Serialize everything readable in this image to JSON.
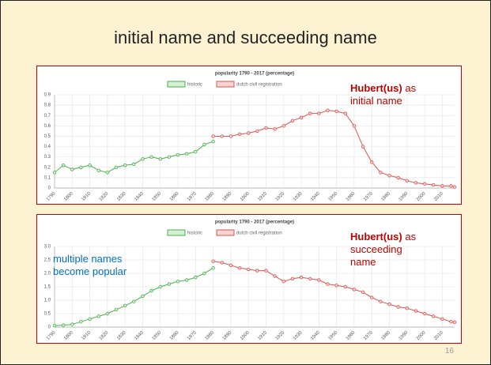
{
  "slide": {
    "title": "initial name and succeeding name",
    "page_number": "16"
  },
  "chart_data": [
    {
      "type": "line",
      "title": "popularity 1790 - 2017 (percentage)",
      "x": [
        1790,
        1795,
        1800,
        1805,
        1810,
        1815,
        1820,
        1825,
        1830,
        1835,
        1840,
        1845,
        1850,
        1855,
        1860,
        1865,
        1870,
        1875,
        1880,
        1885,
        1890,
        1895,
        1900,
        1905,
        1910,
        1915,
        1920,
        1925,
        1930,
        1935,
        1940,
        1945,
        1950,
        1955,
        1960,
        1965,
        1970,
        1975,
        1980,
        1985,
        1990,
        1995,
        2000,
        2005,
        2010,
        2015,
        2017
      ],
      "series": [
        {
          "name": "historic",
          "color": "#4cae4c",
          "fill": "#d6f0d6",
          "values": [
            0.15,
            0.22,
            0.18,
            0.2,
            0.22,
            0.17,
            0.15,
            0.2,
            0.22,
            0.23,
            0.28,
            0.3,
            0.28,
            0.3,
            0.32,
            0.33,
            0.35,
            0.42,
            0.45,
            null,
            null,
            null,
            null,
            null,
            null,
            null,
            null,
            null,
            null,
            null,
            null,
            null,
            null,
            null,
            null,
            null,
            null,
            null,
            null,
            null,
            null,
            null,
            null,
            null,
            null,
            null,
            null
          ]
        },
        {
          "name": "dutch civil registration",
          "color": "#d9534f",
          "fill": "#f6d4d3",
          "values": [
            null,
            null,
            null,
            null,
            null,
            null,
            null,
            null,
            null,
            null,
            null,
            null,
            null,
            null,
            null,
            null,
            null,
            null,
            0.5,
            0.5,
            0.5,
            0.52,
            0.53,
            0.55,
            0.58,
            0.57,
            0.6,
            0.65,
            0.68,
            0.72,
            0.72,
            0.75,
            0.74,
            0.72,
            0.6,
            0.4,
            0.25,
            0.15,
            0.12,
            0.1,
            0.07,
            0.05,
            0.04,
            0.03,
            0.02,
            0.02,
            0.01
          ]
        }
      ],
      "xlim": [
        1790,
        2017
      ],
      "xticks": [
        1790,
        1800,
        1810,
        1820,
        1830,
        1840,
        1850,
        1860,
        1870,
        1880,
        1890,
        1900,
        1910,
        1920,
        1930,
        1940,
        1950,
        1960,
        1970,
        1980,
        1990,
        2000,
        2010
      ],
      "ylim": [
        0,
        0.9
      ],
      "yticks": [
        0,
        0.1,
        0.2,
        0.3,
        0.4,
        0.5,
        0.6,
        0.7,
        0.8,
        0.9
      ],
      "grid": true,
      "annotations": [
        {
          "emphasis": "Hubert(us)",
          "text": "as initial name",
          "color": "#c00000"
        }
      ]
    },
    {
      "type": "line",
      "title": "popularity 1790 - 2017 (percentage)",
      "x": [
        1790,
        1795,
        1800,
        1805,
        1810,
        1815,
        1820,
        1825,
        1830,
        1835,
        1840,
        1845,
        1850,
        1855,
        1860,
        1865,
        1870,
        1875,
        1880,
        1885,
        1890,
        1895,
        1900,
        1905,
        1910,
        1915,
        1920,
        1925,
        1930,
        1935,
        1940,
        1945,
        1950,
        1955,
        1960,
        1965,
        1970,
        1975,
        1980,
        1985,
        1990,
        1995,
        2000,
        2005,
        2010,
        2015,
        2017
      ],
      "series": [
        {
          "name": "historic",
          "color": "#4cae4c",
          "fill": "#d6f0d6",
          "values": [
            0.05,
            0.07,
            0.1,
            0.2,
            0.3,
            0.4,
            0.5,
            0.65,
            0.8,
            0.95,
            1.15,
            1.35,
            1.5,
            1.6,
            1.7,
            1.75,
            1.85,
            2.0,
            2.2,
            null,
            null,
            null,
            null,
            null,
            null,
            null,
            null,
            null,
            null,
            null,
            null,
            null,
            null,
            null,
            null,
            null,
            null,
            null,
            null,
            null,
            null,
            null,
            null,
            null,
            null,
            null,
            null
          ]
        },
        {
          "name": "dutch civil registration",
          "color": "#d9534f",
          "fill": "#f6d4d3",
          "values": [
            null,
            null,
            null,
            null,
            null,
            null,
            null,
            null,
            null,
            null,
            null,
            null,
            null,
            null,
            null,
            null,
            null,
            null,
            2.45,
            2.4,
            2.3,
            2.2,
            2.15,
            2.1,
            2.1,
            1.9,
            1.7,
            1.8,
            1.85,
            1.8,
            1.75,
            1.6,
            1.55,
            1.5,
            1.4,
            1.3,
            1.1,
            0.95,
            0.85,
            0.75,
            0.7,
            0.6,
            0.5,
            0.4,
            0.3,
            0.2,
            0.18
          ]
        }
      ],
      "xlim": [
        1790,
        2017
      ],
      "xticks": [
        1790,
        1800,
        1810,
        1820,
        1830,
        1840,
        1850,
        1860,
        1870,
        1880,
        1890,
        1900,
        1910,
        1920,
        1930,
        1940,
        1950,
        1960,
        1970,
        1980,
        1990,
        2000,
        2010
      ],
      "ylim": [
        0,
        3
      ],
      "yticks": [
        0,
        0.5,
        {
          "value": 1,
          "label": "1.0"
        },
        1.5,
        {
          "value": 2,
          "label": "2.0"
        },
        2.5,
        {
          "value": 3,
          "label": "3.0"
        }
      ],
      "grid": true,
      "annotations": [
        {
          "emphasis": "Hubert(us)",
          "text": "as succeeding name",
          "color": "#c00000"
        },
        {
          "text": "multiple names become popular",
          "color": "#0070c0"
        }
      ]
    }
  ]
}
